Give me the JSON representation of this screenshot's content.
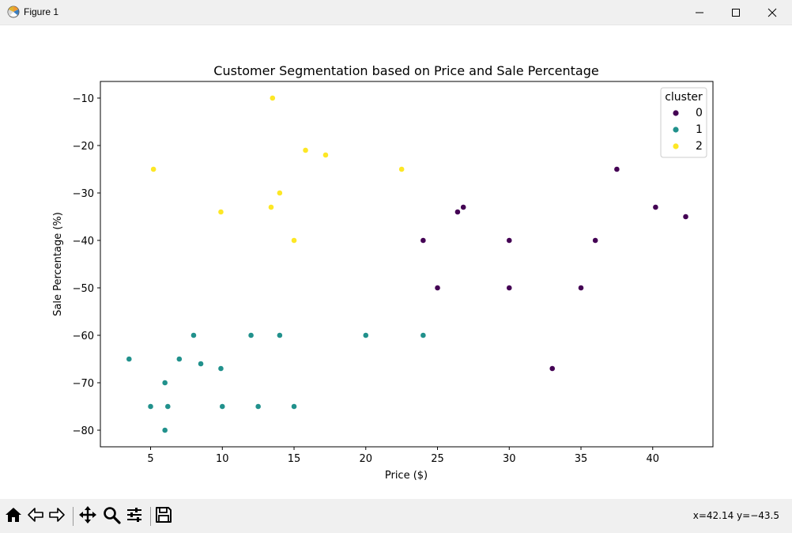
{
  "window": {
    "title": "Figure 1",
    "minimize_icon": "minimize-icon",
    "maximize_icon": "maximize-icon",
    "close_icon": "close-icon"
  },
  "toolbar": {
    "buttons": [
      {
        "name": "home-button",
        "icon": "home-icon"
      },
      {
        "name": "back-button",
        "icon": "back-arrow-icon"
      },
      {
        "name": "forward-button",
        "icon": "forward-arrow-icon"
      },
      {
        "name": "pan-button",
        "icon": "pan-move-icon"
      },
      {
        "name": "zoom-button",
        "icon": "zoom-magnifier-icon"
      },
      {
        "name": "configure-subplots-button",
        "icon": "sliders-icon"
      },
      {
        "name": "save-button",
        "icon": "save-floppy-icon"
      }
    ],
    "coords": "x=42.14 y=−43.5"
  },
  "colors": {
    "cluster0": "#440154",
    "cluster1": "#21918c",
    "cluster2": "#fde725"
  },
  "chart_data": {
    "type": "scatter",
    "title": "Customer Segmentation based on Price and Sale Percentage",
    "xlabel": "Price ($)",
    "ylabel": "Sale Percentage (%)",
    "xlim": [
      1.5,
      44.2
    ],
    "ylim": [
      -83.5,
      -6.5
    ],
    "xticks": [
      5,
      10,
      15,
      20,
      25,
      30,
      35,
      40
    ],
    "yticks": [
      -10,
      -20,
      -30,
      -40,
      -50,
      -60,
      -70,
      -80
    ],
    "xtick_labels": [
      "5",
      "10",
      "15",
      "20",
      "25",
      "30",
      "35",
      "40"
    ],
    "ytick_labels": [
      "−10",
      "−20",
      "−30",
      "−40",
      "−50",
      "−60",
      "−70",
      "−80"
    ],
    "grid": false,
    "legend": {
      "title": "cluster",
      "placement": "top-right",
      "entries": [
        "0",
        "1",
        "2"
      ]
    },
    "series": [
      {
        "name": "0",
        "points": [
          [
            24,
            -40
          ],
          [
            25,
            -50
          ],
          [
            26.4,
            -34
          ],
          [
            26.8,
            -33
          ],
          [
            30,
            -40
          ],
          [
            30,
            -50
          ],
          [
            33,
            -67
          ],
          [
            35,
            -50
          ],
          [
            36,
            -40
          ],
          [
            37.5,
            -25
          ],
          [
            40.2,
            -33
          ],
          [
            42.3,
            -35
          ]
        ]
      },
      {
        "name": "1",
        "points": [
          [
            3.5,
            -65
          ],
          [
            5,
            -75
          ],
          [
            6,
            -70
          ],
          [
            6,
            -80
          ],
          [
            6.2,
            -75
          ],
          [
            7,
            -65
          ],
          [
            8,
            -60
          ],
          [
            8.5,
            -66
          ],
          [
            9.9,
            -67
          ],
          [
            10,
            -75
          ],
          [
            12,
            -60
          ],
          [
            12.5,
            -75
          ],
          [
            14,
            -60
          ],
          [
            15,
            -75
          ],
          [
            20,
            -60
          ],
          [
            24,
            -60
          ]
        ]
      },
      {
        "name": "2",
        "points": [
          [
            5.2,
            -25
          ],
          [
            9.9,
            -34
          ],
          [
            13.4,
            -33
          ],
          [
            13.5,
            -10
          ],
          [
            14,
            -30
          ],
          [
            15,
            -40
          ],
          [
            15.8,
            -21
          ],
          [
            17.2,
            -22
          ],
          [
            22.5,
            -25
          ]
        ]
      }
    ]
  }
}
